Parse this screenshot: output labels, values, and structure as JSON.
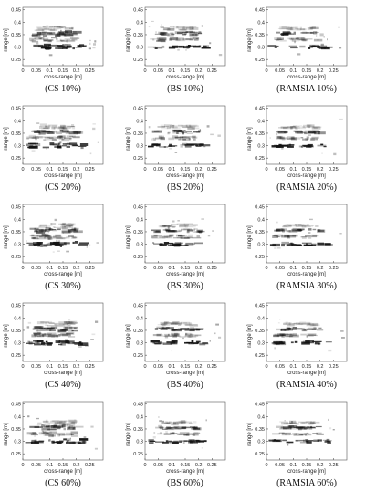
{
  "figure": {
    "axes": {
      "xlabel": "cross-range [m]",
      "ylabel": "range [m]",
      "x_ticks": [
        {
          "v": 0,
          "label": "0"
        },
        {
          "v": 0.05,
          "label": "0.05"
        },
        {
          "v": 0.1,
          "label": "0.1"
        },
        {
          "v": 0.15,
          "label": "0.15"
        },
        {
          "v": 0.2,
          "label": "0.2"
        },
        {
          "v": 0.25,
          "label": "0.25"
        }
      ],
      "y_ticks": [
        {
          "v": 0.25,
          "label": "0.25"
        },
        {
          "v": 0.3,
          "label": "0.3"
        },
        {
          "v": 0.35,
          "label": "0.35"
        },
        {
          "v": 0.4,
          "label": "0.4"
        },
        {
          "v": 0.45,
          "label": "0.45"
        }
      ],
      "xlim": [
        0,
        0.3
      ],
      "ylim": [
        0.225,
        0.46
      ]
    },
    "panels": [
      {
        "caption": "(CS 10%)",
        "method": "CS",
        "ratio": 10
      },
      {
        "caption": "(BS 10%)",
        "method": "BS",
        "ratio": 10
      },
      {
        "caption": "(RAMSIA 10%)",
        "method": "RAMSIA",
        "ratio": 10
      },
      {
        "caption": "(CS 20%)",
        "method": "CS",
        "ratio": 20
      },
      {
        "caption": "(BS 20%)",
        "method": "BS",
        "ratio": 20
      },
      {
        "caption": "(RAMSIA 20%)",
        "method": "RAMSIA",
        "ratio": 20
      },
      {
        "caption": "(CS 30%)",
        "method": "CS",
        "ratio": 30
      },
      {
        "caption": "(BS 30%)",
        "method": "BS",
        "ratio": 30
      },
      {
        "caption": "(RAMSIA 30%)",
        "method": "RAMSIA",
        "ratio": 30
      },
      {
        "caption": "(CS 40%)",
        "method": "CS",
        "ratio": 40
      },
      {
        "caption": "(BS 40%)",
        "method": "BS",
        "ratio": 40
      },
      {
        "caption": "(RAMSIA 40%)",
        "method": "RAMSIA",
        "ratio": 40
      },
      {
        "caption": "(CS 60%)",
        "method": "CS",
        "ratio": 60
      },
      {
        "caption": "(BS 60%)",
        "method": "BS",
        "ratio": 60
      },
      {
        "caption": "(RAMSIA 60%)",
        "method": "RAMSIA",
        "ratio": 60
      }
    ],
    "colors": {
      "ink": "#111111",
      "axis": "#555555",
      "background": "#ffffff"
    }
  }
}
